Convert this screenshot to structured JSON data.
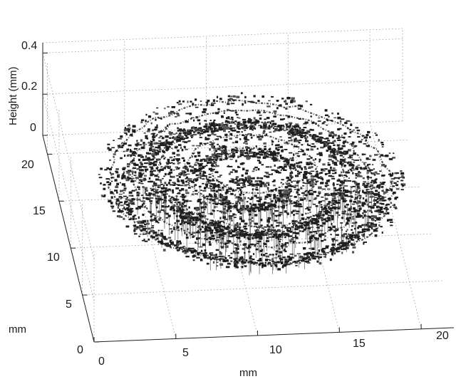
{
  "chart_data": {
    "type": "3d-surface-scatter",
    "title": "",
    "xlabel": "mm",
    "ylabel": "mm",
    "zlabel": "Height (mm)",
    "x_ticks": [
      "0",
      "5",
      "10",
      "15",
      "20"
    ],
    "y_ticks": [
      "0",
      "5",
      "10",
      "15",
      "20"
    ],
    "z_ticks": [
      "0",
      "0.2",
      "0.4"
    ],
    "xlim": [
      0,
      22
    ],
    "ylim": [
      0,
      22
    ],
    "zlim": [
      0,
      0.45
    ],
    "grid": true,
    "colors": {
      "points": "#1f1f1f",
      "stems": "#6e6e6e",
      "grid": "#9a9a9a"
    },
    "rings": [
      {
        "radius": 8.6,
        "z": 0.2
      },
      {
        "radius": 7.2,
        "z": 0.22
      },
      {
        "radius": 5.6,
        "z": 0.24
      },
      {
        "radius": 4.0,
        "z": 0.25
      },
      {
        "radius": 2.4,
        "z": 0.26
      }
    ]
  }
}
